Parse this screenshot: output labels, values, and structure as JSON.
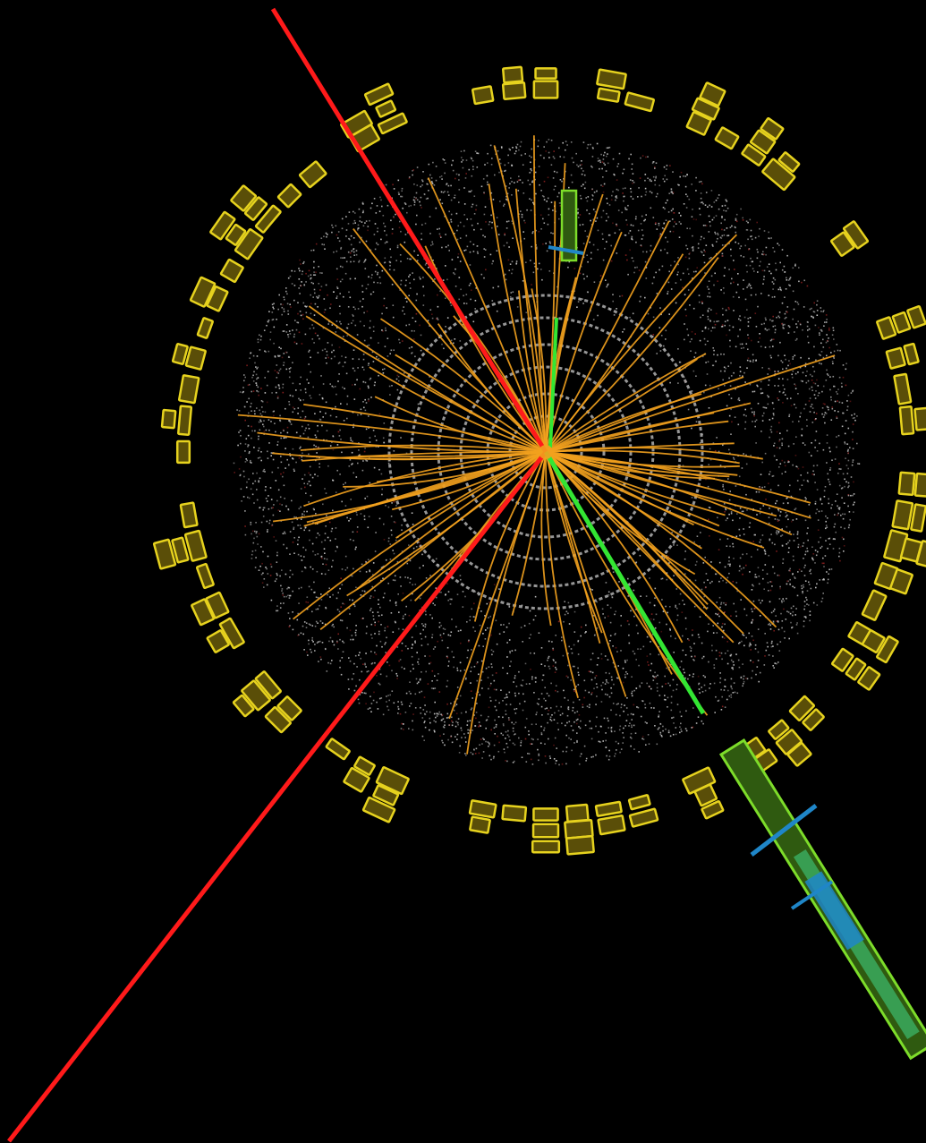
{
  "palette": {
    "background": "#000000",
    "hits": "#c8c8c8",
    "hits_dim": "#8a1f1f",
    "tracks": "#f2a11e",
    "muon_track": "#ff1a1a",
    "electron_track": "#33e633",
    "calo_outline": "#e6d21e",
    "calo_fill": "#5a4e08",
    "green_tower_outline": "#7ddc2a",
    "green_tower_fill": "#2f5a10",
    "green_tower_inner": "#3aa55a",
    "blue_segments": "#1f86c8"
  },
  "elements": {
    "tracker": "inner-detector-hits",
    "charged_tracks": "orange-track-curves",
    "muons": "red-straight-tracks",
    "electron": "green-track",
    "calorimeter": "yellow-energy-towers",
    "outer_tower": "green-lar-tower",
    "chambers": "blue-muon-chamber-segments"
  }
}
